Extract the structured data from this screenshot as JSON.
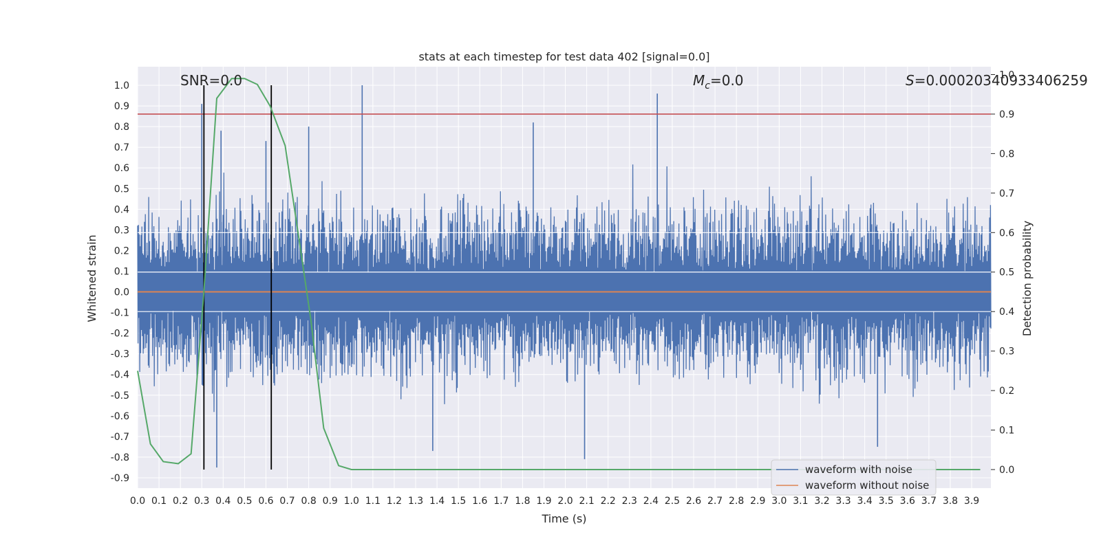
{
  "chart_data": {
    "type": "line",
    "title": "stats at each timestep for test data 402 [signal=0.0]",
    "xlabel": "Time (s)",
    "ylabel": "Whitened strain",
    "y2label": "Detection probability",
    "xlim": [
      0.0,
      3.99
    ],
    "ylim": [
      -0.95,
      1.09
    ],
    "y2lim": [
      -0.047,
      1.02
    ],
    "x_ticks": [
      0.0,
      0.1,
      0.2,
      0.3,
      0.4,
      0.5,
      0.6,
      0.7,
      0.8,
      0.9,
      1.0,
      1.1,
      1.2,
      1.3,
      1.4,
      1.5,
      1.6,
      1.7,
      1.8,
      1.9,
      2.0,
      2.1,
      2.2,
      2.3,
      2.4,
      2.5,
      2.6,
      2.7,
      2.8,
      2.9,
      3.0,
      3.1,
      3.2,
      3.3,
      3.4,
      3.5,
      3.6,
      3.7,
      3.8,
      3.9
    ],
    "y_ticks": [
      -0.9,
      -0.8,
      -0.7,
      -0.6,
      -0.5,
      -0.4,
      -0.3,
      -0.2,
      -0.1,
      0.0,
      0.1,
      0.2,
      0.3,
      0.4,
      0.5,
      0.6,
      0.7,
      0.8,
      0.9,
      1.0
    ],
    "y2_ticks": [
      0.0,
      0.1,
      0.2,
      0.3,
      0.4,
      0.5,
      0.6,
      0.7,
      0.8,
      0.9,
      1.0
    ],
    "grid": true,
    "legend_position": "lower-right",
    "annotations": {
      "snr": "SNR=0.0",
      "mc_symbol": "M",
      "mc_sub": "c",
      "mc_value": "=0.0",
      "s_symbol": "S",
      "s_value": "=0.00020340933406259"
    },
    "vlines_x": [
      0.31,
      0.625
    ],
    "threshold_y2": 0.9,
    "series": [
      {
        "name": "waveform with noise",
        "color": "#4c72b0",
        "kind": "noise",
        "x_range": [
          0.0,
          3.99
        ],
        "peaks": [
          {
            "x": 0.3,
            "y": 0.91
          },
          {
            "x": 0.37,
            "y": -0.85
          },
          {
            "x": 0.39,
            "y": 0.78
          },
          {
            "x": 0.6,
            "y": 0.73
          },
          {
            "x": 0.8,
            "y": 0.8
          },
          {
            "x": 1.05,
            "y": 1.0
          },
          {
            "x": 1.85,
            "y": 0.82
          },
          {
            "x": 2.09,
            "y": -0.81
          },
          {
            "x": 2.43,
            "y": 0.96
          },
          {
            "x": 3.46,
            "y": -0.75
          },
          {
            "x": 1.38,
            "y": -0.77
          }
        ]
      },
      {
        "name": "waveform without noise",
        "color": "#dd8452",
        "x": [
          0.0,
          3.99
        ],
        "y": [
          0.0,
          0.0
        ]
      },
      {
        "name": "detection probability",
        "color": "#55a868",
        "axis": "right",
        "x": [
          0.0,
          0.06,
          0.12,
          0.19,
          0.25,
          0.31,
          0.37,
          0.44,
          0.5,
          0.56,
          0.62,
          0.69,
          0.75,
          0.81,
          0.87,
          0.94,
          1.0,
          1.5,
          2.0,
          2.5,
          3.0,
          3.5,
          3.94
        ],
        "y": [
          0.25,
          0.065,
          0.02,
          0.015,
          0.04,
          0.45,
          0.94,
          0.99,
          0.99,
          0.975,
          0.92,
          0.82,
          0.6,
          0.38,
          0.105,
          0.01,
          0.0,
          0.0,
          0.0,
          0.0,
          0.0,
          0.0,
          0.0
        ]
      }
    ]
  }
}
